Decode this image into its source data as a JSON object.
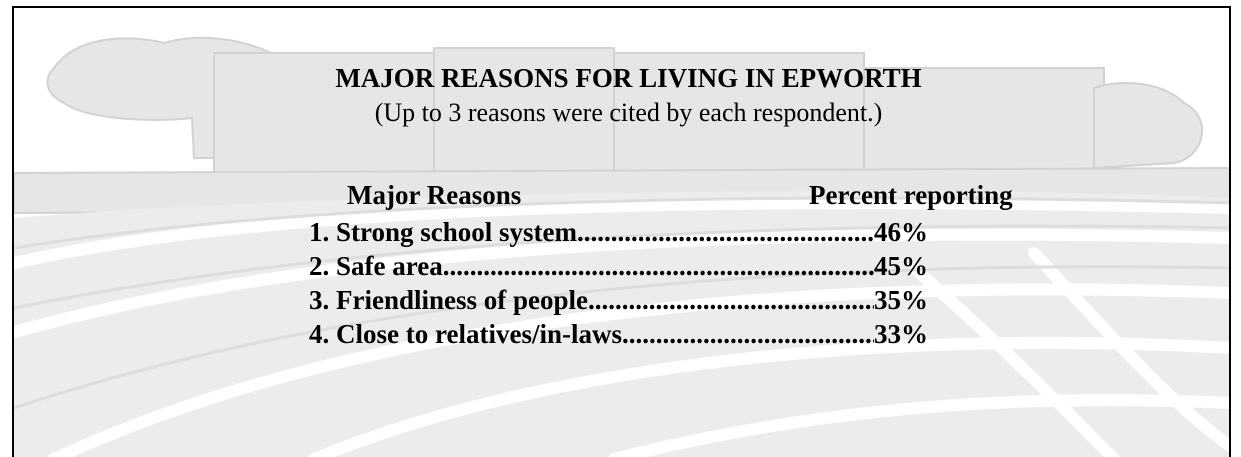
{
  "title": "MAJOR REASONS FOR LIVING IN EPWORTH",
  "subtitle": "(Up to 3 reasons were cited by each respondent.)",
  "table": {
    "header_reason": "Major Reasons",
    "header_percent": "Percent reporting",
    "rows": [
      {
        "label": "1. Strong school system",
        "value": "46%"
      },
      {
        "label": "2. Safe area",
        "value": "45%"
      },
      {
        "label": "3. Friendliness of people",
        "value": "35%"
      },
      {
        "label": "4. Close to relatives/in-laws",
        "value": "33%"
      }
    ]
  }
}
